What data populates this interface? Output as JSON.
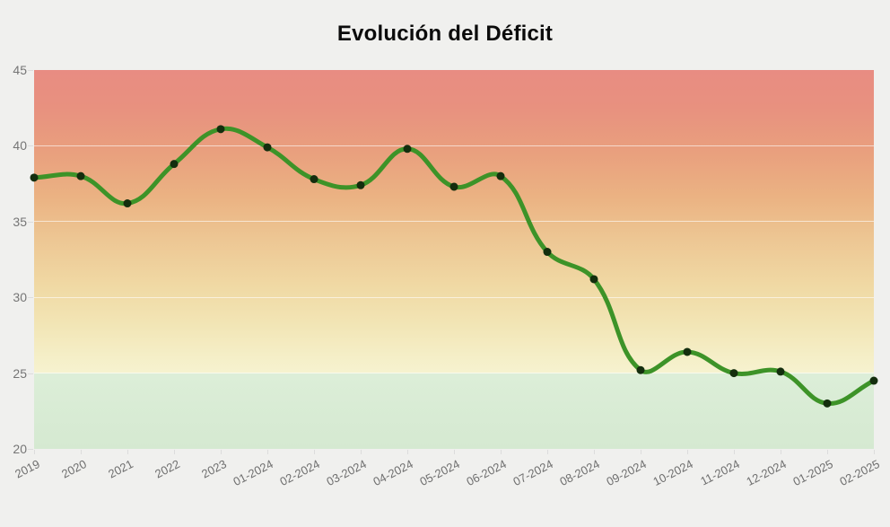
{
  "page": {
    "background_color": "#f0f0ee"
  },
  "chart_data": {
    "type": "line",
    "title": "Evolución del Déficit",
    "xlabel": "",
    "ylabel": "",
    "legend_position": "none",
    "grid": true,
    "categories": [
      "2019",
      "2020",
      "2021",
      "2022",
      "2023",
      "01-2024",
      "02-2024",
      "03-2024",
      "04-2024",
      "05-2024",
      "06-2024",
      "07-2024",
      "08-2024",
      "09-2024",
      "10-2024",
      "11-2024",
      "12-2024",
      "01-2025",
      "02-2025"
    ],
    "values": [
      37.9,
      38.0,
      36.2,
      38.8,
      41.1,
      39.9,
      37.8,
      37.4,
      39.8,
      37.3,
      38.0,
      33.0,
      31.2,
      25.2,
      26.4,
      25.0,
      25.1,
      23.0,
      24.5
    ],
    "ylim": [
      20,
      45
    ],
    "yticks": [
      45,
      40,
      35,
      30,
      25,
      20
    ],
    "line_color": "#3d9328",
    "line_width": 5,
    "marker_color": "#142e0e",
    "marker_radius": 4.5,
    "grid_color": "rgba(255,255,255,0.6)",
    "tick_text_color": "#757575",
    "title_color": "#0b0b0b",
    "background_zones": {
      "description": "danger-to-safe gradient, solid green safe zone below 25",
      "safe_zone_max": 25,
      "safe_zone_color": "#d9ecd4",
      "gradient_stops": [
        "#e88c82 0%",
        "#e8917f 10%",
        "#e9a07e 22%",
        "#ebb383 34%",
        "#edc794 45%",
        "#f0d9a4 57%",
        "#f2e5b5 67%",
        "#f5efc8 76%",
        "#f6f2cf 79.8%",
        "#dceed8 80.2%",
        "#d5e9d1 100%"
      ]
    }
  }
}
